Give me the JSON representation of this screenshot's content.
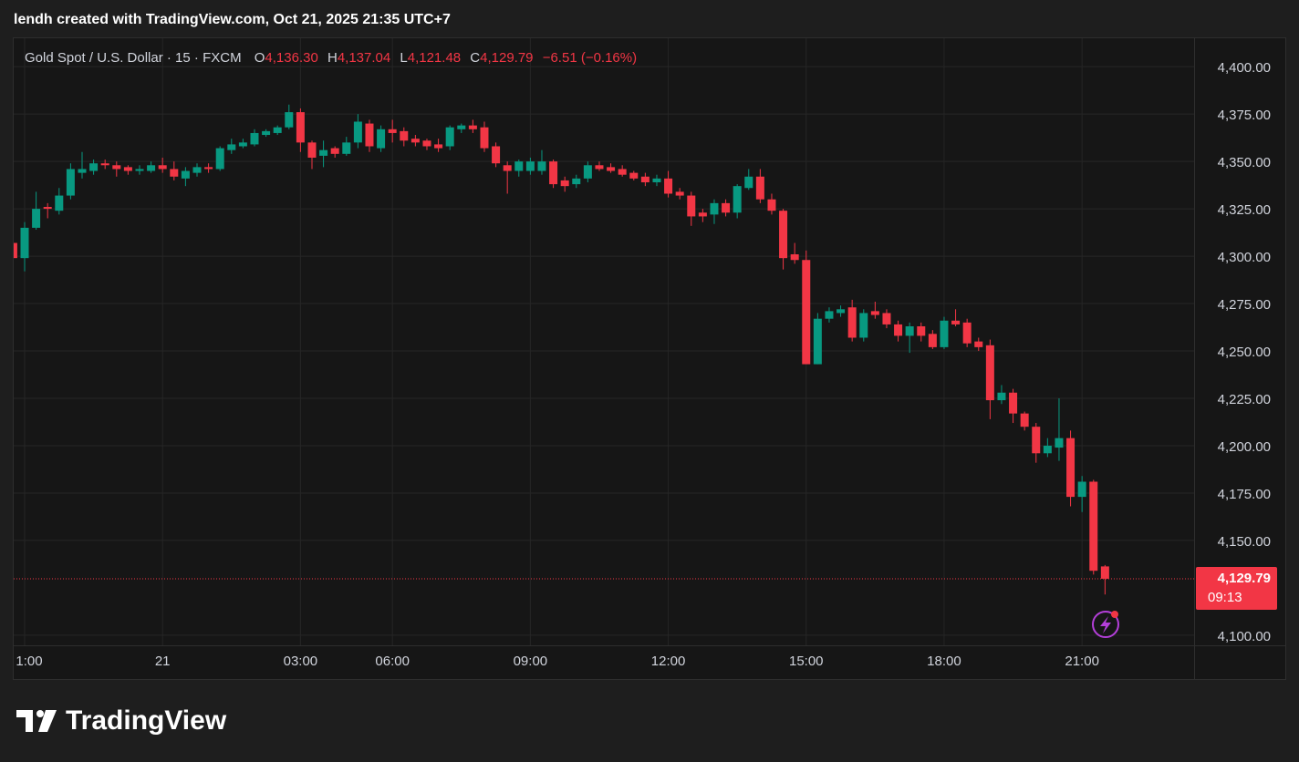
{
  "header": {
    "caption": "lendh created with TradingView.com, Oct 21, 2025 21:35 UTC+7",
    "brand": "TradingView"
  },
  "chart_data": {
    "type": "candlestick",
    "title": "Gold Spot / U.S. Dollar · 15 · FXCM",
    "legend": {
      "items": [
        {
          "key": "O",
          "value": "4,136.30"
        },
        {
          "key": "H",
          "value": "4,137.04"
        },
        {
          "key": "L",
          "value": "4,121.48"
        },
        {
          "key": "C",
          "value": "4,129.79"
        }
      ],
      "change": "−6.51 (−0.16%)"
    },
    "countdown": "09:13",
    "up_color": "#089981",
    "down_color": "#f23645",
    "open": [
      4307,
      4299,
      4315,
      4326,
      4324,
      4332,
      4344,
      4345,
      4349,
      4348,
      4347,
      4345,
      4345,
      4348,
      4346,
      4341,
      4344,
      4347,
      4346,
      4356,
      4358,
      4359,
      4364,
      4365,
      4368,
      4376,
      4360,
      4353,
      4357,
      4354,
      4360,
      4370,
      4357,
      4367,
      4366,
      4362,
      4361,
      4359,
      4358,
      4367,
      4369,
      4368,
      4358,
      4348,
      4345,
      4345,
      4345,
      4350,
      4340,
      4338,
      4341,
      4348,
      4347,
      4346,
      4344,
      4342,
      4339,
      4341,
      4334,
      4332,
      4323,
      4322,
      4328,
      4323,
      4336,
      4342,
      4330,
      4324,
      4301,
      4298,
      4243,
      4267,
      4270,
      4273,
      4257,
      4271,
      4270,
      4264,
      4258,
      4263,
      4259,
      4252,
      4266,
      4265,
      4255,
      4253,
      4224,
      4228,
      4217,
      4210,
      4196,
      4199,
      4204,
      4173,
      4181,
      4136.3
    ],
    "high": [
      4310,
      4318,
      4334,
      4328,
      4336,
      4349,
      4355,
      4351,
      4351,
      4350,
      4348,
      4348,
      4350,
      4352,
      4350,
      4347,
      4349,
      4349,
      4358,
      4362,
      4362,
      4367,
      4367,
      4369,
      4380,
      4378,
      4361,
      4361,
      4358,
      4363,
      4375,
      4372,
      4369,
      4372,
      4368,
      4364,
      4362,
      4362,
      4369,
      4370,
      4372,
      4371,
      4360,
      4350,
      4351,
      4352,
      4356,
      4351,
      4342,
      4343,
      4350,
      4350,
      4349,
      4348,
      4345,
      4344,
      4343,
      4345,
      4336,
      4334,
      4325,
      4330,
      4330,
      4338,
      4346,
      4346,
      4333,
      4325,
      4307,
      4303,
      4270,
      4273,
      4274,
      4277,
      4272,
      4276,
      4272,
      4266,
      4265,
      4265,
      4261,
      4268,
      4272,
      4267,
      4257,
      4256,
      4232,
      4230,
      4218,
      4212,
      4204,
      4225,
      4208,
      4184,
      4182,
      4137.04
    ],
    "low": [
      4297,
      4292,
      4314,
      4320,
      4322,
      4330,
      4341,
      4343,
      4346,
      4342,
      4343,
      4343,
      4344,
      4344,
      4340,
      4337,
      4342,
      4344,
      4345,
      4354,
      4357,
      4358,
      4363,
      4364,
      4367,
      4355,
      4346,
      4347,
      4352,
      4353,
      4357,
      4355,
      4355,
      4360,
      4358,
      4358,
      4356,
      4355,
      4356,
      4365,
      4365,
      4355,
      4347,
      4333,
      4342,
      4343,
      4343,
      4336,
      4334,
      4336,
      4339,
      4345,
      4344,
      4342,
      4340,
      4337,
      4337,
      4331,
      4330,
      4316,
      4318,
      4317,
      4321,
      4320,
      4335,
      4328,
      4322,
      4293,
      4296,
      4243,
      4243,
      4265,
      4268,
      4255,
      4255,
      4267,
      4262,
      4255,
      4249,
      4255,
      4251,
      4251,
      4263,
      4252,
      4250,
      4214,
      4222,
      4212,
      4208,
      4191,
      4194,
      4192,
      4168,
      4165,
      4132,
      4121.48
    ],
    "close": [
      4299,
      4315,
      4325,
      4325,
      4332,
      4346,
      4346,
      4349,
      4348,
      4346,
      4345,
      4346,
      4348,
      4346,
      4342,
      4345,
      4347,
      4346,
      4357,
      4359,
      4360,
      4365,
      4366,
      4368,
      4376,
      4360,
      4352,
      4356,
      4354,
      4360,
      4371,
      4358,
      4367,
      4365,
      4361,
      4360,
      4358,
      4357,
      4368,
      4369,
      4367,
      4357,
      4349,
      4345,
      4350,
      4350,
      4350,
      4338,
      4337,
      4341,
      4348,
      4346,
      4345,
      4343,
      4341,
      4339,
      4341,
      4333,
      4332,
      4321,
      4321,
      4328,
      4323,
      4337,
      4342,
      4330,
      4324,
      4299,
      4298,
      4243,
      4267,
      4271,
      4272,
      4257,
      4270,
      4269,
      4264,
      4258,
      4263,
      4258,
      4252,
      4266,
      4264,
      4254,
      4252,
      4224,
      4228,
      4217,
      4210,
      4196,
      4200,
      4204,
      4173,
      4181,
      4134,
      4129.79
    ],
    "xlim": [
      0,
      102.75
    ],
    "xticks": [
      {
        "value": 1,
        "label": "1:00"
      },
      {
        "value": 13,
        "label": "21"
      },
      {
        "value": 25,
        "label": "03:00"
      },
      {
        "value": 33,
        "label": "06:00"
      },
      {
        "value": 45,
        "label": "09:00"
      },
      {
        "value": 57,
        "label": "12:00"
      },
      {
        "value": 69,
        "label": "15:00"
      },
      {
        "value": 81,
        "label": "18:00"
      },
      {
        "value": 93,
        "label": "21:00"
      }
    ],
    "ylim": [
      4098.5,
      4415
    ],
    "yticks": [
      {
        "value": 4100,
        "label": "4,100.00"
      },
      {
        "value": 4150,
        "label": "4,150.00"
      },
      {
        "value": 4175,
        "label": "4,175.00"
      },
      {
        "value": 4200,
        "label": "4,200.00"
      },
      {
        "value": 4225,
        "label": "4,225.00"
      },
      {
        "value": 4250,
        "label": "4,250.00"
      },
      {
        "value": 4275,
        "label": "4,275.00"
      },
      {
        "value": 4300,
        "label": "4,300.00"
      },
      {
        "value": 4325,
        "label": "4,325.00"
      },
      {
        "value": 4350,
        "label": "4,350.00"
      },
      {
        "value": 4375,
        "label": "4,375.00"
      },
      {
        "value": 4400,
        "label": "4,400.00"
      }
    ],
    "grid": true
  }
}
